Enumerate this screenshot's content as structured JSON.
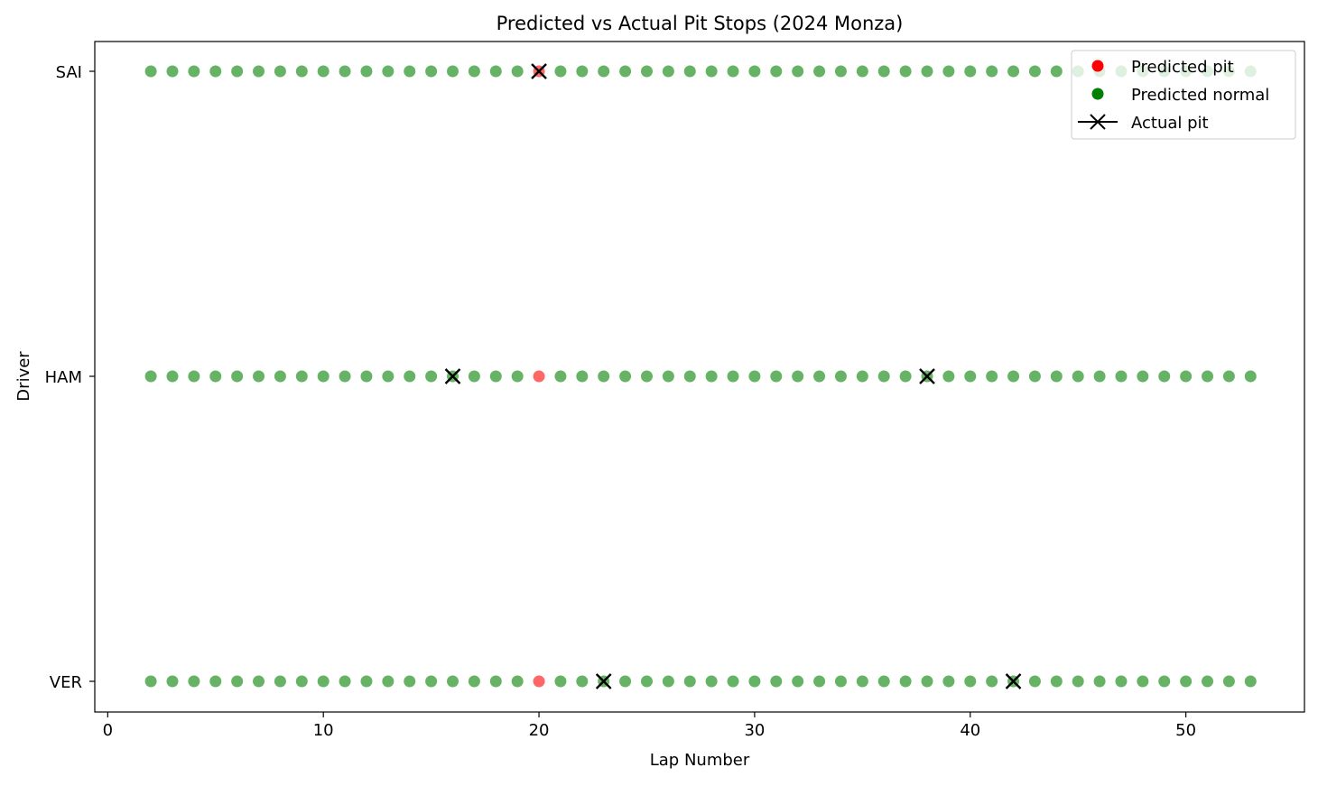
{
  "chart_data": {
    "type": "scatter",
    "title": "Predicted vs Actual Pit Stops (2024 Monza)",
    "xlabel": "Lap Number",
    "ylabel": "Driver",
    "xlim": [
      -0.6,
      55.5
    ],
    "x_ticks": [
      0,
      10,
      20,
      30,
      40,
      50
    ],
    "categories": [
      "VER",
      "HAM",
      "SAI"
    ],
    "laps": {
      "start": 2,
      "end": 53
    },
    "grid": false,
    "legend_position": "top-right",
    "legend": [
      {
        "label": "Predicted pit",
        "marker": "dot",
        "color": "#ff0000"
      },
      {
        "label": "Predicted normal",
        "marker": "dot",
        "color": "#008000"
      },
      {
        "label": "Actual pit",
        "marker": "x-line",
        "color": "#000000"
      }
    ],
    "colors": {
      "predicted_pit": "#ff0000",
      "predicted_normal": "#008000",
      "actual_pit": "#000000"
    },
    "series": [
      {
        "driver": "VER",
        "predicted_pit_laps": [
          20
        ],
        "actual_pit_laps": [
          23,
          42
        ]
      },
      {
        "driver": "HAM",
        "predicted_pit_laps": [
          20
        ],
        "actual_pit_laps": [
          16,
          38
        ]
      },
      {
        "driver": "SAI",
        "predicted_pit_laps": [
          20
        ],
        "actual_pit_laps": [
          20
        ]
      }
    ]
  }
}
